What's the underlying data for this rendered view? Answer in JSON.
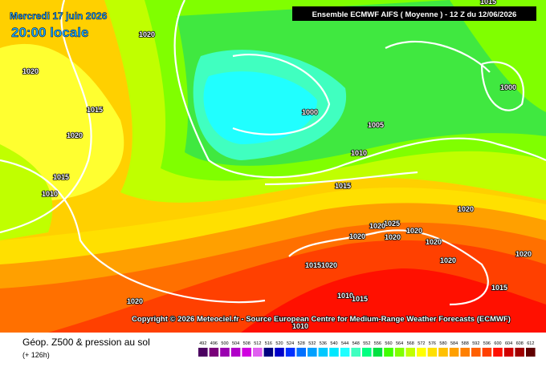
{
  "header": {
    "date": "Mercredi 17 juin 2026",
    "time": "20:00 locale",
    "model": "Ensemble ECMWF AIFS  ( Moyenne )  -  12 Z du 12/06/2026"
  },
  "copyright": "Copyright © 2026 Meteociel.fr - Source European Centre for Medium-Range Weather Forecasts (ECMWF)",
  "legend": {
    "title": "Géop. Z500 & pression au sol",
    "lead": "(+ 126h)",
    "labels": [
      492,
      496,
      500,
      504,
      508,
      512,
      516,
      520,
      524,
      528,
      532,
      536,
      540,
      544,
      548,
      552,
      556,
      560,
      564,
      568,
      572,
      576,
      580,
      584,
      588,
      592,
      596,
      600,
      604,
      608,
      612
    ],
    "colors": [
      "#4b0060",
      "#7a007a",
      "#9a00b0",
      "#b000c8",
      "#d000e0",
      "#e060f0",
      "#000080",
      "#0000c8",
      "#0030ff",
      "#0070ff",
      "#00a0ff",
      "#00c8ff",
      "#00e8ff",
      "#20ffff",
      "#40ffc0",
      "#00ff80",
      "#00e040",
      "#40ff00",
      "#80ff00",
      "#c0ff00",
      "#ffff00",
      "#ffe000",
      "#ffc000",
      "#ffa000",
      "#ff8000",
      "#ff6000",
      "#ff4000",
      "#ff1000",
      "#d00000",
      "#a00000",
      "#600000"
    ]
  },
  "isobar_labels": [
    "1020",
    "1020",
    "1015",
    "1020",
    "1015",
    "1010",
    "1000",
    "1005",
    "1010",
    "1015",
    "1000",
    "1015",
    "1020",
    "1025",
    "1020",
    "1020",
    "1020",
    "1020",
    "1020",
    "1020",
    "1020",
    "10151020",
    "1015",
    "1010",
    "1015",
    "1020",
    "1010"
  ]
}
